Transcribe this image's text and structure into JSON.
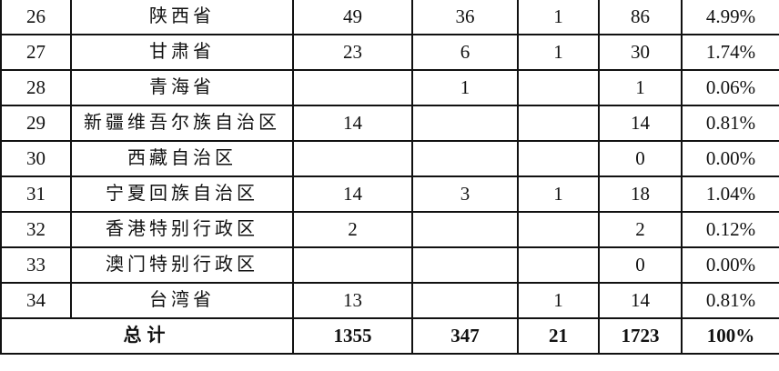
{
  "rows": [
    {
      "no": "26",
      "name": "陕西省",
      "c1": "49",
      "c2": "36",
      "c3": "1",
      "total": "86",
      "pct": "4.99%"
    },
    {
      "no": "27",
      "name": "甘肃省",
      "c1": "23",
      "c2": "6",
      "c3": "1",
      "total": "30",
      "pct": "1.74%"
    },
    {
      "no": "28",
      "name": "青海省",
      "c1": "",
      "c2": "1",
      "c3": "",
      "total": "1",
      "pct": "0.06%"
    },
    {
      "no": "29",
      "name": "新疆维吾尔族自治区",
      "c1": "14",
      "c2": "",
      "c3": "",
      "total": "14",
      "pct": "0.81%"
    },
    {
      "no": "30",
      "name": "西藏自治区",
      "c1": "",
      "c2": "",
      "c3": "",
      "total": "0",
      "pct": "0.00%"
    },
    {
      "no": "31",
      "name": "宁夏回族自治区",
      "c1": "14",
      "c2": "3",
      "c3": "1",
      "total": "18",
      "pct": "1.04%"
    },
    {
      "no": "32",
      "name": "香港特别行政区",
      "c1": "2",
      "c2": "",
      "c3": "",
      "total": "2",
      "pct": "0.12%"
    },
    {
      "no": "33",
      "name": "澳门特别行政区",
      "c1": "",
      "c2": "",
      "c3": "",
      "total": "0",
      "pct": "0.00%"
    },
    {
      "no": "34",
      "name": "台湾省",
      "c1": "13",
      "c2": "",
      "c3": "1",
      "total": "14",
      "pct": "0.81%"
    }
  ],
  "summary": {
    "label": "总计",
    "c1": "1355",
    "c2": "347",
    "c3": "21",
    "total": "1723",
    "pct": "100%"
  }
}
